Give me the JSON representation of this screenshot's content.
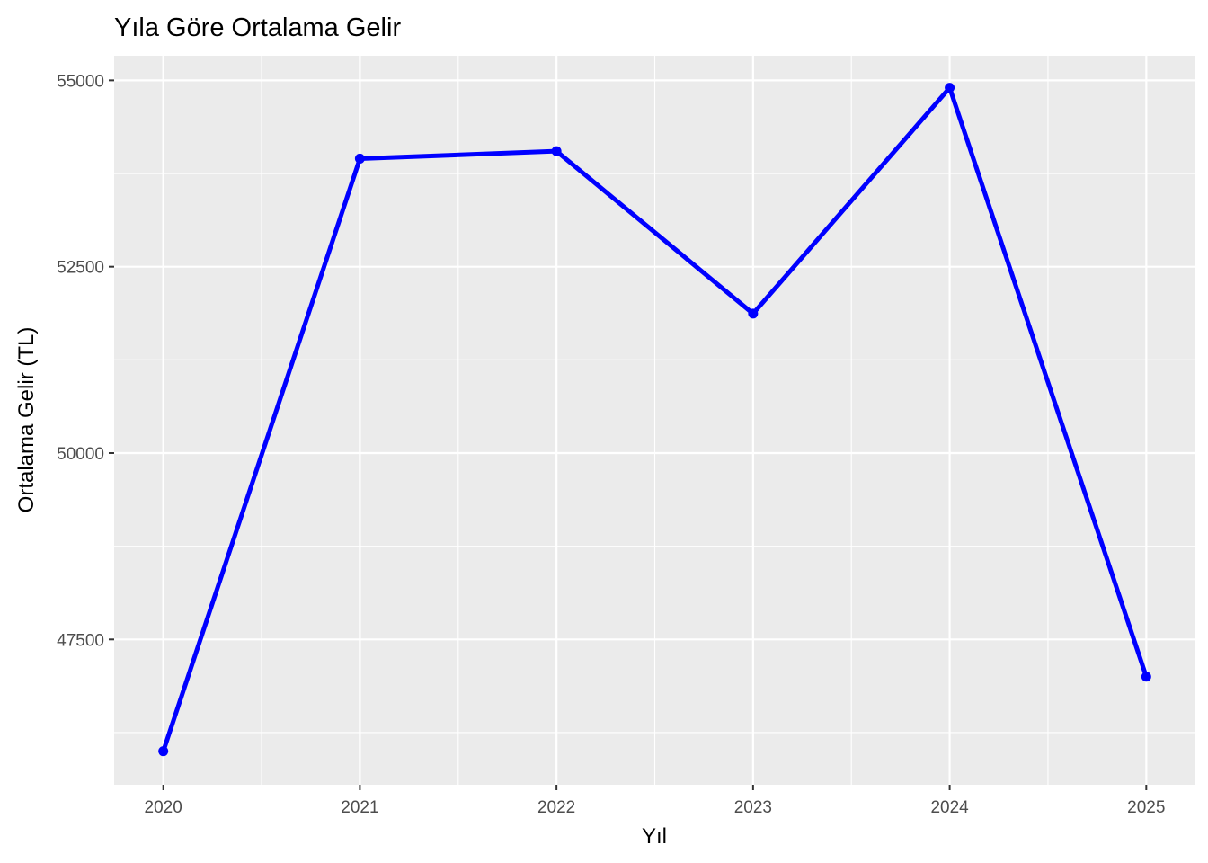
{
  "chart_data": {
    "type": "line",
    "title": "Yıla Göre Ortalama Gelir",
    "xlabel": "Yıl",
    "ylabel": "Ortalama Gelir (TL)",
    "x": [
      2020,
      2021,
      2022,
      2023,
      2024,
      2025
    ],
    "x_tick_labels": [
      "2020",
      "2021",
      "2022",
      "2023",
      "2024",
      "2025"
    ],
    "y_ticks": [
      47500,
      50000,
      52500,
      55000
    ],
    "y_tick_labels": [
      "47500",
      "50000",
      "52500",
      "55000"
    ],
    "xlim": [
      2019.75,
      2025.25
    ],
    "ylim": [
      45550,
      55330
    ],
    "series": [
      {
        "values": [
          46000,
          53950,
          54050,
          51870,
          54900,
          47000
        ],
        "color": "#0000ff"
      }
    ],
    "grid": true,
    "panel_background": "#ebebeb",
    "grid_color": "#ffffff",
    "legend": "none"
  }
}
